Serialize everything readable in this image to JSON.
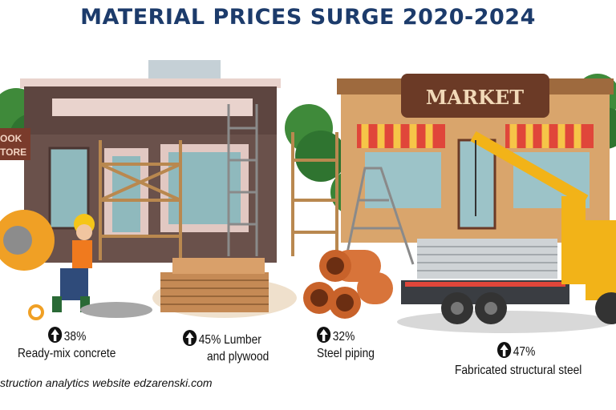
{
  "title": "MATERIAL PRICES SURGE 2020-2024",
  "colors": {
    "title": "#1c3b6b",
    "market_sign": "#6b3a26",
    "awning_red": "#e0463a",
    "crane_yellow": "#f2b318",
    "pipe": "#c8622a"
  },
  "illustration": {
    "bookstore_sign": "OOK\nTORE",
    "market_sign": "MARKET"
  },
  "stats": [
    {
      "icon": "up-arrow-icon",
      "value": "38%",
      "label": "Ready-mix concrete"
    },
    {
      "icon": "up-arrow-icon",
      "value": "45% Lumber",
      "label": "and plywood"
    },
    {
      "icon": "up-arrow-icon",
      "value": "32%",
      "label": "Steel piping"
    },
    {
      "icon": "up-arrow-icon",
      "value": "47%",
      "label": "Fabricated structural steel"
    }
  ],
  "footer": "struction analytics website edzarenski.com"
}
